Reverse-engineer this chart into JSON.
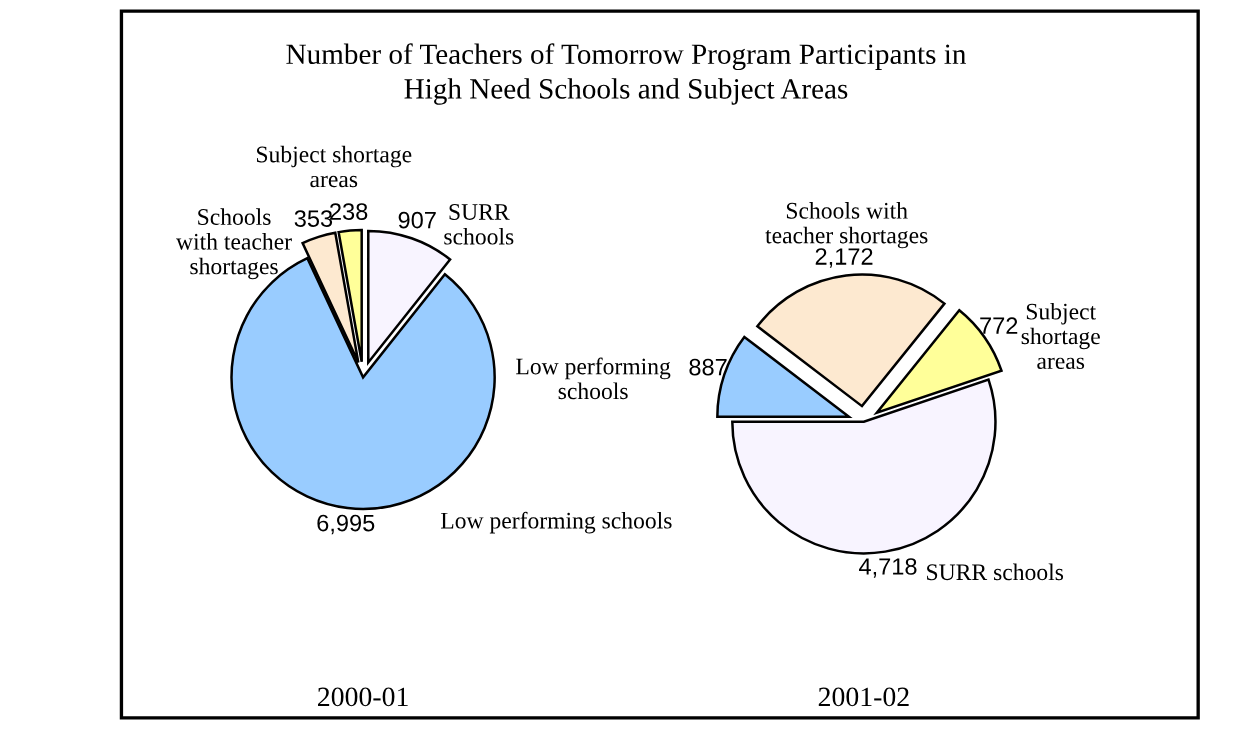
{
  "chart_data": [
    {
      "type": "pie",
      "title": "Number of Teachers of Tomorrow Program Participants in\nHigh Need Schools and Subject Areas",
      "xlabel": "2000-01",
      "categories": [
        "SURR\nschools",
        "Low performing schools",
        "Schools\nwith teacher\nshortages",
        "Subject shortage\nareas"
      ],
      "values": [
        907,
        6995,
        353,
        238
      ],
      "value_labels": [
        "907",
        "6,995",
        "353",
        "238"
      ],
      "colors": [
        "#f8f4ff",
        "#99ccff",
        "#fde9d0",
        "#ffff99"
      ]
    },
    {
      "type": "pie",
      "xlabel": "2001-02",
      "categories": [
        "Low performing\nschools",
        "Schools with\nteacher shortages",
        "Subject\nshortage\nareas",
        "SURR schools"
      ],
      "values": [
        887,
        2172,
        772,
        4718
      ],
      "value_labels": [
        "887",
        "2,172",
        "772",
        "4,718"
      ],
      "colors": [
        "#99ccff",
        "#fde9d0",
        "#ffff99",
        "#f8f4ff"
      ]
    }
  ]
}
